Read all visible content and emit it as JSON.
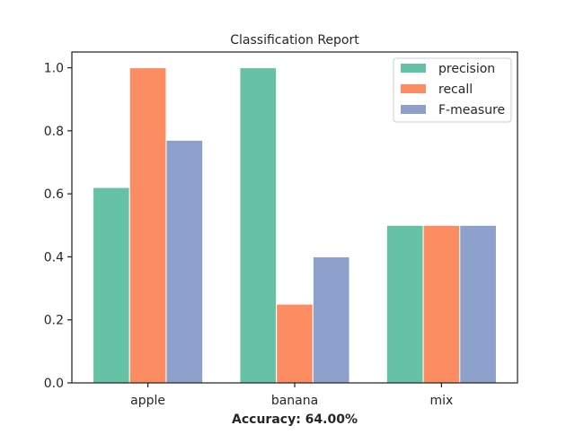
{
  "chart_data": {
    "type": "bar",
    "title": "Classification Report",
    "xlabel": "Accuracy: 64.00%",
    "ylabel": "",
    "categories": [
      "apple",
      "banana",
      "mix"
    ],
    "series": [
      {
        "name": "precision",
        "values": [
          0.62,
          1.0,
          0.5
        ],
        "color": "#66c2a5"
      },
      {
        "name": "recall",
        "values": [
          1.0,
          0.25,
          0.5
        ],
        "color": "#fc8d62"
      },
      {
        "name": "F-measure",
        "values": [
          0.77,
          0.4,
          0.5
        ],
        "color": "#8da0cb"
      }
    ],
    "ylim": [
      0,
      1.05
    ],
    "yticks": [
      0.0,
      0.2,
      0.4,
      0.6,
      0.8,
      1.0
    ],
    "ytick_labels": [
      "0.0",
      "0.2",
      "0.4",
      "0.6",
      "0.8",
      "1.0"
    ],
    "grid": false,
    "legend_position": "top-right"
  }
}
